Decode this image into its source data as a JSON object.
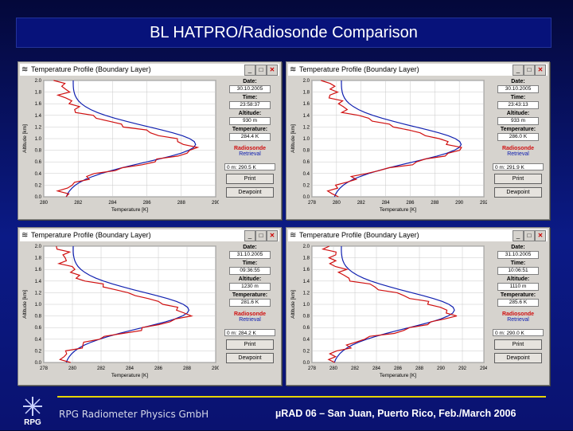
{
  "slide_title": "BL HATPRO/Radiosonde Comparison",
  "footer": {
    "left": "RPG Radiometer Physics GmbH",
    "right": "µRAD 06 – San Juan, Puerto Rico, Feb./March 2006",
    "logo_text": "RPG"
  },
  "window_controls": {
    "minimize": "_",
    "maximize": "□",
    "close": "✕"
  },
  "windows": [
    {
      "title": "Temperature Profile (Boundary Layer)",
      "date_label": "Date:",
      "date": "30.10.2005",
      "time_label": "Time:",
      "time": "23:58:37",
      "altitude_label": "Altitude:",
      "altitude": "930 m",
      "temperature_label": "Temperature:",
      "temperature": "284.4 K",
      "radiosonde_label": "Radiosonde",
      "retrieval_label": "Retrieval",
      "offset_select": "0 m: 290.5 K",
      "print_button": "Print",
      "dewpoint_button": "Dewpoint",
      "x_label": "Temperature [K]",
      "y_label": "Altitude [km]",
      "x_ticks": [
        "280",
        "282",
        "284",
        "286",
        "288",
        "290"
      ],
      "y_ticks": [
        "0.0",
        "0.2",
        "0.4",
        "0.6",
        "0.8",
        "1.0",
        "1.2",
        "1.4",
        "1.6",
        "1.8",
        "2.0"
      ]
    },
    {
      "title": "Temperature Profile (Boundary Layer)",
      "date_label": "Date:",
      "date": "30.10.2005",
      "time_label": "Time:",
      "time": "23:43:13",
      "altitude_label": "Altitude:",
      "altitude": "933 m",
      "temperature_label": "Temperature:",
      "temperature": "286.0 K",
      "radiosonde_label": "Radiosonde",
      "retrieval_label": "Retrieval",
      "offset_select": "0 m: 291.9 K",
      "print_button": "Print",
      "dewpoint_button": "Dewpoint",
      "x_label": "Temperature [K]",
      "y_label": "Altitude [km]",
      "x_ticks": [
        "278",
        "280",
        "282",
        "284",
        "286",
        "288",
        "290",
        "292"
      ],
      "y_ticks": [
        "0.0",
        "0.2",
        "0.4",
        "0.6",
        "0.8",
        "1.0",
        "1.2",
        "1.4",
        "1.6",
        "1.8",
        "2.0"
      ]
    },
    {
      "title": "Temperature Profile (Boundary Layer)",
      "date_label": "Date:",
      "date": "31.10.2005",
      "time_label": "Time:",
      "time": "09:36:55",
      "altitude_label": "Altitude:",
      "altitude": "1230 m",
      "temperature_label": "Temperature:",
      "temperature": "281.6 K",
      "radiosonde_label": "Radiosonde",
      "retrieval_label": "Retrieval",
      "offset_select": "0 m: 284.2 K",
      "print_button": "Print",
      "dewpoint_button": "Dewpoint",
      "x_label": "Temperature [K]",
      "y_label": "Altitude [km]",
      "x_ticks": [
        "278",
        "280",
        "282",
        "284",
        "286",
        "288",
        "290"
      ],
      "y_ticks": [
        "0.0",
        "0.2",
        "0.4",
        "0.6",
        "0.8",
        "1.0",
        "1.2",
        "1.4",
        "1.6",
        "1.8",
        "2.0"
      ]
    },
    {
      "title": "Temperature Profile (Boundary Layer)",
      "date_label": "Date:",
      "date": "31.10.2005",
      "time_label": "Time:",
      "time": "10:06:51",
      "altitude_label": "Altitude:",
      "altitude": "1110 m",
      "temperature_label": "Temperature:",
      "temperature": "285.6 K",
      "radiosonde_label": "Radiosonde",
      "retrieval_label": "Retrieval",
      "offset_select": "0 m: 290.0 K",
      "print_button": "Print",
      "dewpoint_button": "Dewpoint",
      "x_label": "Temperature [K]",
      "y_label": "Altitude [km]",
      "x_ticks": [
        "278",
        "280",
        "282",
        "284",
        "286",
        "288",
        "290",
        "292",
        "294"
      ],
      "y_ticks": [
        "0.0",
        "0.2",
        "0.4",
        "0.6",
        "0.8",
        "1.0",
        "1.2",
        "1.4",
        "1.6",
        "1.8",
        "2.0"
      ]
    }
  ],
  "colors": {
    "radiosonde": "#d01010",
    "retrieval": "#1020b0",
    "title_bar": "#07127a",
    "footer_rule": "#e6d400"
  }
}
